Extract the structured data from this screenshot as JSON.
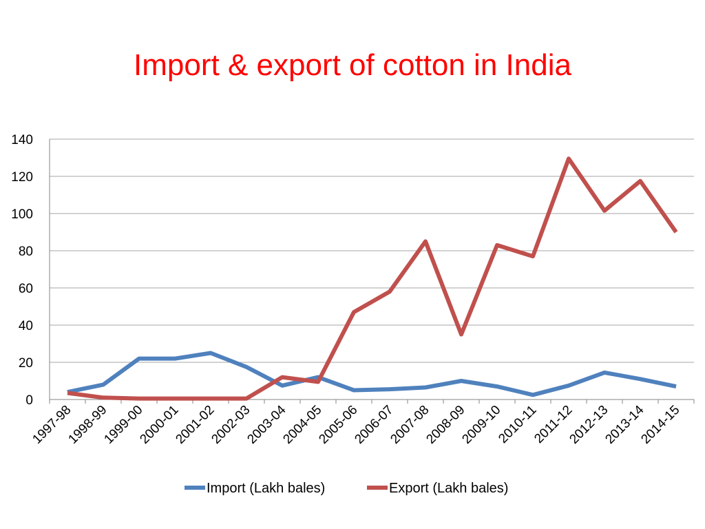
{
  "title": "Import & export of cotton in India",
  "colors": {
    "title": "#ff0000",
    "import": "#4f81bd",
    "export": "#c0504d",
    "grid": "#a6a6a6"
  },
  "chart_data": {
    "type": "line",
    "title": "Import & export of cotton in India",
    "xlabel": "",
    "ylabel": "",
    "ylim": [
      0,
      140
    ],
    "yticks": [
      0,
      20,
      40,
      60,
      80,
      100,
      120,
      140
    ],
    "grid": true,
    "legend": "bottom",
    "categories": [
      "1997-98",
      "1998-99",
      "1999-00",
      "2000-01",
      "2001-02",
      "2002-03",
      "2003-04",
      "2004-05",
      "2005-06",
      "2006-07",
      "2007-08",
      "2008-09",
      "2009-10",
      "2010-11",
      "2011-12",
      "2012-13",
      "2013-14",
      "2014-15"
    ],
    "series": [
      {
        "name": "Import (Lakh bales)",
        "color": "#4f81bd",
        "values": [
          4,
          8,
          22,
          22,
          25,
          17.5,
          7.5,
          12,
          5,
          5.5,
          6.5,
          10,
          7,
          2.5,
          7.5,
          14.5,
          11,
          7
        ]
      },
      {
        "name": "Export (Lakh bales)",
        "color": "#c0504d",
        "values": [
          3.5,
          1,
          0.5,
          0.5,
          0.5,
          0.5,
          12,
          9.5,
          47,
          58,
          85,
          35,
          83,
          77,
          129.5,
          101.5,
          117.5,
          90
        ]
      }
    ]
  }
}
